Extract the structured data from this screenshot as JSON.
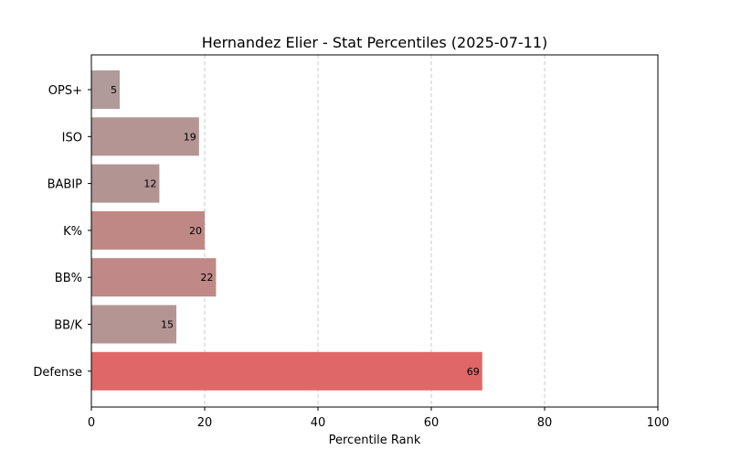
{
  "chart_data": {
    "type": "bar",
    "orientation": "horizontal",
    "title": "Hernandez Elier - Stat Percentiles (2025-07-11)",
    "xlabel": "Percentile Rank",
    "ylabel": "",
    "xlim": [
      0,
      100
    ],
    "xticks": [
      0,
      20,
      40,
      60,
      80,
      100
    ],
    "grid": "x-dashed",
    "categories": [
      "OPS+",
      "ISO",
      "BABIP",
      "K%",
      "BB%",
      "BB/K",
      "Defense"
    ],
    "values": [
      5,
      19,
      12,
      20,
      22,
      15,
      69
    ],
    "data_labels": [
      "5",
      "19",
      "12",
      "20",
      "22",
      "15",
      "69"
    ],
    "bar_colors": [
      "#b09a9a",
      "#b49594",
      "#b29493",
      "#c08885",
      "#c08886",
      "#b49594",
      "#e06767"
    ]
  }
}
